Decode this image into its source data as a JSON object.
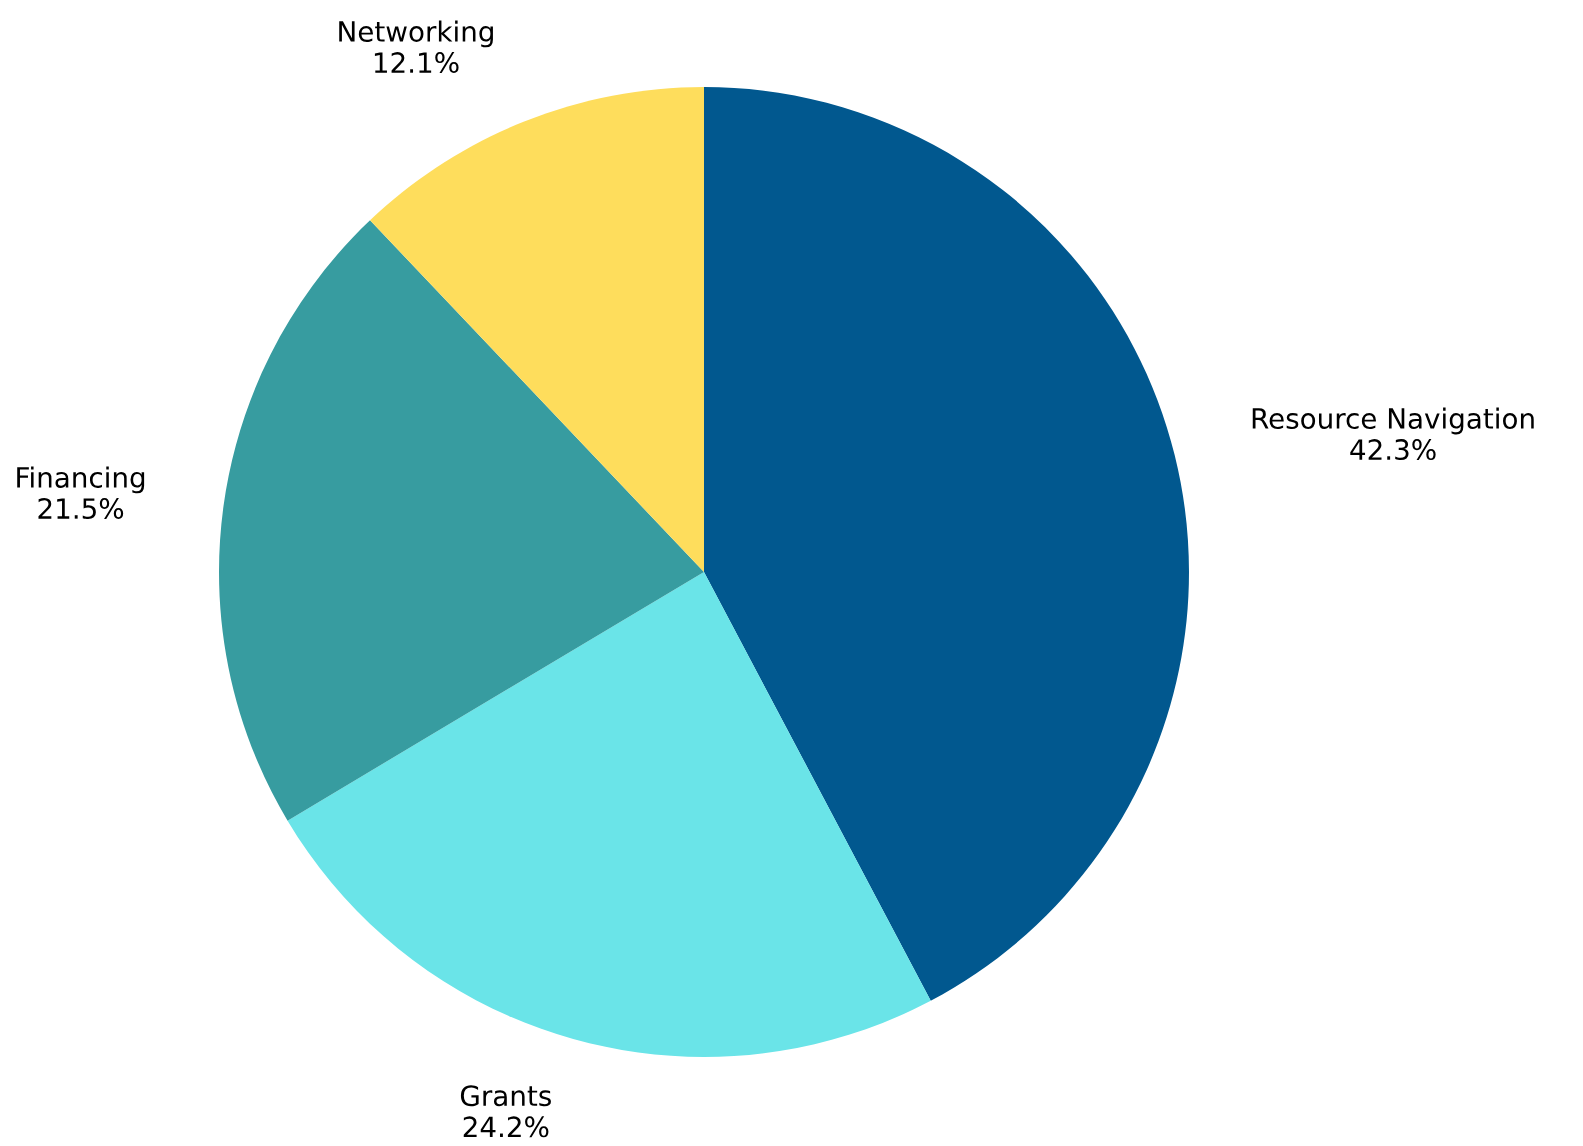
{
  "chart_data": {
    "type": "pie",
    "categories": [
      "Resource Navigation",
      "Grants",
      "Financing",
      "Networking"
    ],
    "values": [
      42.3,
      24.2,
      21.5,
      12.1
    ],
    "value_labels": [
      "42.3%",
      "24.2%",
      "21.5%",
      "12.1%"
    ],
    "colors": [
      "#01588f",
      "#6ae4e8",
      "#379ca0",
      "#fedd5c"
    ]
  }
}
